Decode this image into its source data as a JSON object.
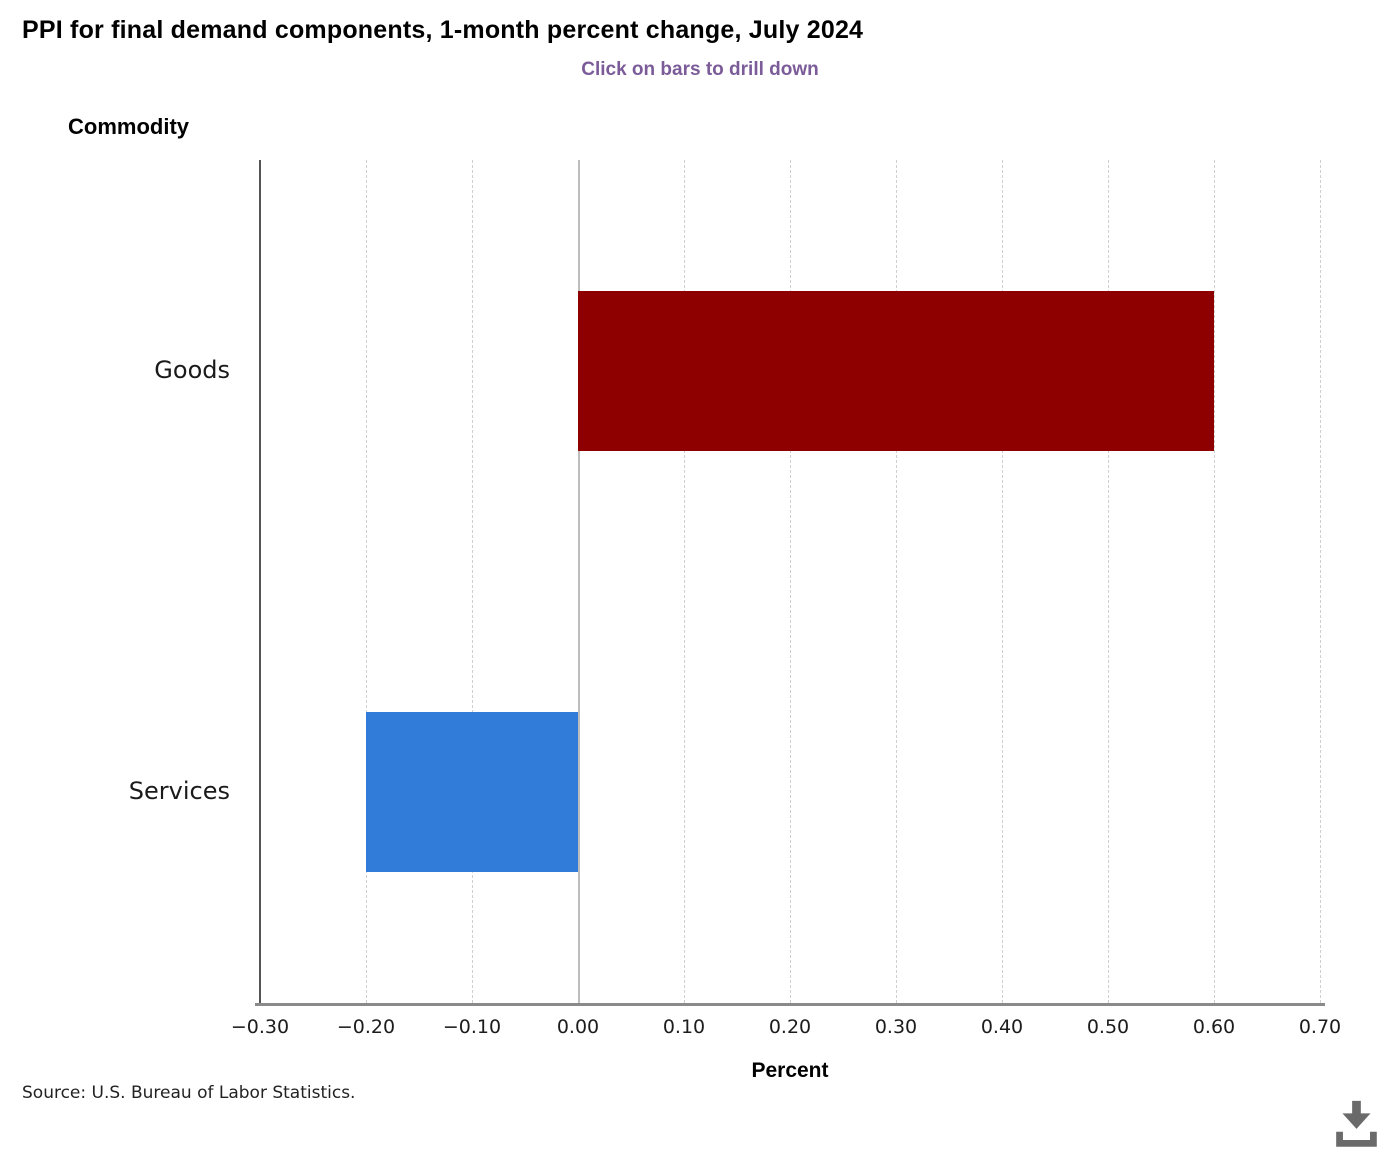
{
  "page": {
    "title": "PPI for final demand components, 1-month percent change, July 2024",
    "subtitle": "Click on bars to drill down",
    "source": "Source: U.S. Bureau of Labor Statistics."
  },
  "chart_data": {
    "type": "bar",
    "orientation": "horizontal",
    "title": "PPI for final demand components, 1-month percent change, July 2024",
    "subtitle": "Click on bars to drill down",
    "categories": [
      "Goods",
      "Services"
    ],
    "values": [
      0.6,
      -0.2
    ],
    "bar_colors": [
      "#8e0000",
      "#307cd8"
    ],
    "xlabel": "Percent",
    "ylabel": "Commodity",
    "xlim": [
      -0.3,
      0.7
    ],
    "xticks": [
      -0.3,
      -0.2,
      -0.1,
      0,
      0.1,
      0.2,
      0.3,
      0.4,
      0.5,
      0.6,
      0.7
    ],
    "xtick_labels": [
      "−0.30",
      "−0.20",
      "−0.10",
      "0.00",
      "0.10",
      "0.20",
      "0.30",
      "0.40",
      "0.50",
      "0.60",
      "0.70"
    ],
    "grid": "vertical-dashed, zero-line-solid",
    "legend": "none"
  },
  "colors": {
    "subtitle_text": "#7b5c99",
    "goods_bar": "#8e0000",
    "services_bar": "#307cd8",
    "gridline": "#cfcfcf",
    "zero_line": "#bdbdbd",
    "x_axis_line": "#8a8a8a",
    "y_axis_line": "#555555",
    "download_icon": "#6a6a6a"
  },
  "icons": {
    "download": "download-icon"
  }
}
